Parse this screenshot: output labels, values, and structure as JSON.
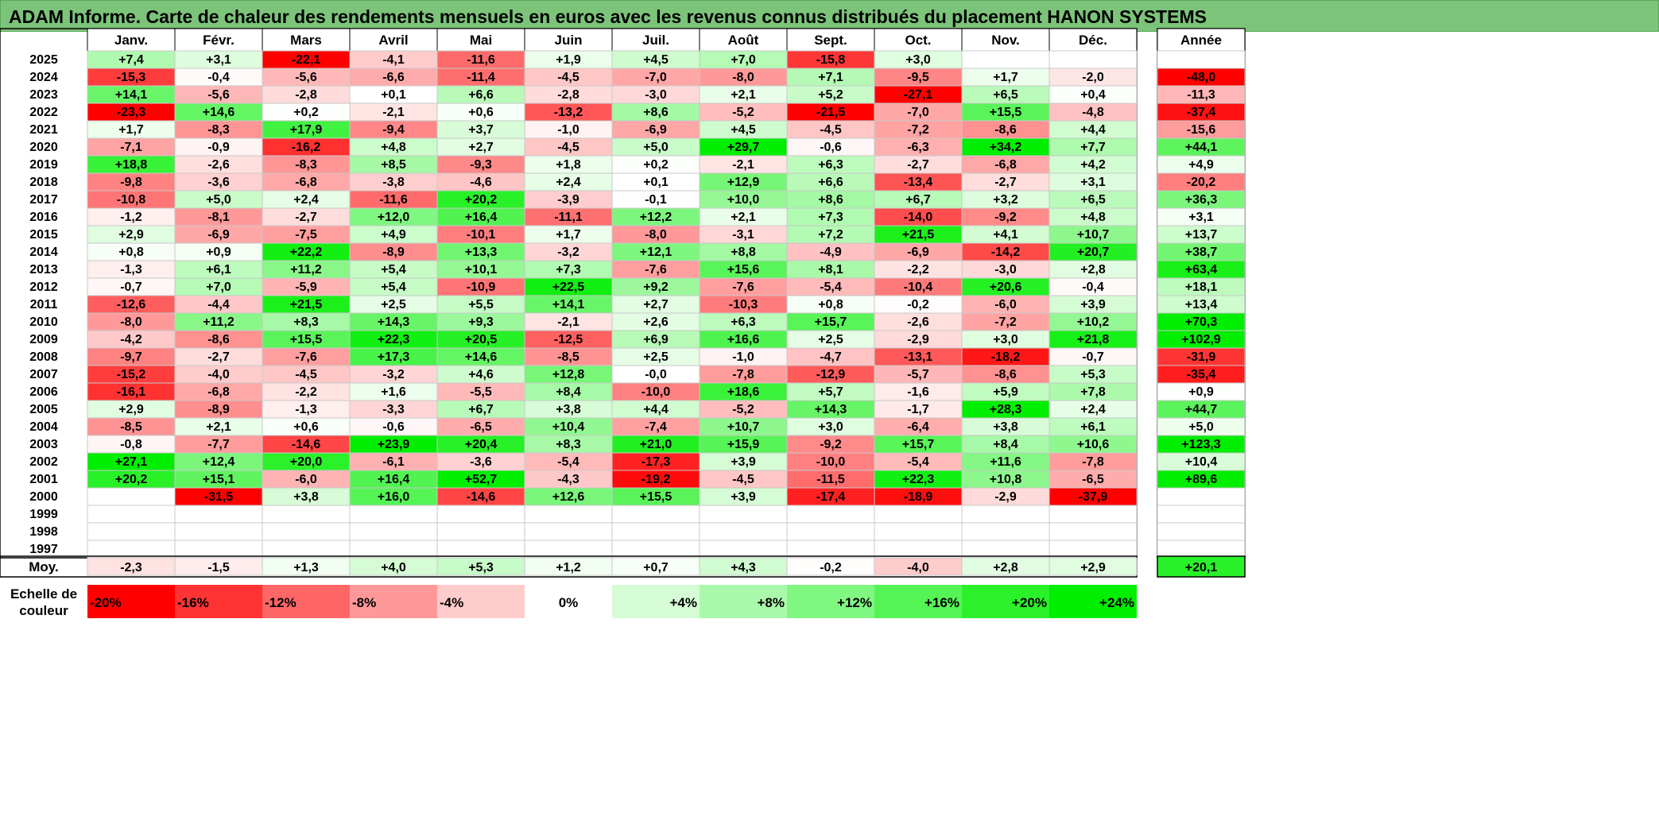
{
  "title": "ADAM Informe. Carte de chaleur des rendements mensuels en euros avec les revenus connus distribués du placement HANON SYSTEMS",
  "chart_data": {
    "type": "heatmap",
    "months": [
      "Janv.",
      "Févr.",
      "Mars",
      "Avril",
      "Mai",
      "Juin",
      "Juil.",
      "Août",
      "Sept.",
      "Oct.",
      "Nov.",
      "Déc."
    ],
    "annual_label": "Année",
    "years": [
      "2025",
      "2024",
      "2023",
      "2022",
      "2021",
      "2020",
      "2019",
      "2018",
      "2017",
      "2016",
      "2015",
      "2014",
      "2013",
      "2012",
      "2011",
      "2010",
      "2009",
      "2008",
      "2007",
      "2006",
      "2005",
      "2004",
      "2003",
      "2002",
      "2001",
      "2000",
      "1999",
      "1998",
      "1997"
    ],
    "values": [
      [
        "+7,4",
        "+3,1",
        "-22,1",
        "-4,1",
        "-11,6",
        "+1,9",
        "+4,5",
        "+7,0",
        "-15,8",
        "+3,0",
        "",
        ""
      ],
      [
        "-15,3",
        "-0,4",
        "-5,6",
        "-6,6",
        "-11,4",
        "-4,5",
        "-7,0",
        "-8,0",
        "+7,1",
        "-9,5",
        "+1,7",
        "-2,0"
      ],
      [
        "+14,1",
        "-5,6",
        "-2,8",
        "+0,1",
        "+6,6",
        "-2,8",
        "-3,0",
        "+2,1",
        "+5,2",
        "-27,1",
        "+6,5",
        "+0,4"
      ],
      [
        "-23,3",
        "+14,6",
        "+0,2",
        "-2,1",
        "+0,6",
        "-13,2",
        "+8,6",
        "-5,2",
        "-21,5",
        "-7,0",
        "+15,5",
        "-4,8"
      ],
      [
        "+1,7",
        "-8,3",
        "+17,9",
        "-9,4",
        "+3,7",
        "-1,0",
        "-6,9",
        "+4,5",
        "-4,5",
        "-7,2",
        "-8,6",
        "+4,4"
      ],
      [
        "-7,1",
        "-0,9",
        "-16,2",
        "+4,8",
        "+2,7",
        "-4,5",
        "+5,0",
        "+29,7",
        "-0,6",
        "-6,3",
        "+34,2",
        "+7,7"
      ],
      [
        "+18,8",
        "-2,6",
        "-8,3",
        "+8,5",
        "-9,3",
        "+1,8",
        "+0,2",
        "-2,1",
        "+6,3",
        "-2,7",
        "-6,8",
        "+4,2"
      ],
      [
        "-9,8",
        "-3,6",
        "-6,8",
        "-3,8",
        "-4,6",
        "+2,4",
        "+0,1",
        "+12,9",
        "+6,6",
        "-13,4",
        "-2,7",
        "+3,1"
      ],
      [
        "-10,8",
        "+5,0",
        "+2,4",
        "-11,6",
        "+20,2",
        "-3,9",
        "-0,1",
        "+10,0",
        "+8,6",
        "+6,7",
        "+3,2",
        "+6,5"
      ],
      [
        "-1,2",
        "-8,1",
        "-2,7",
        "+12,0",
        "+16,4",
        "-11,1",
        "+12,2",
        "+2,1",
        "+7,3",
        "-14,0",
        "-9,2",
        "+4,8"
      ],
      [
        "+2,9",
        "-6,9",
        "-7,5",
        "+4,9",
        "-10,1",
        "+1,7",
        "-8,0",
        "-3,1",
        "+7,2",
        "+21,5",
        "+4,1",
        "+10,7"
      ],
      [
        "+0,8",
        "+0,9",
        "+22,2",
        "-8,9",
        "+13,3",
        "-3,2",
        "+12,1",
        "+8,8",
        "-4,9",
        "-6,9",
        "-14,2",
        "+20,7"
      ],
      [
        "-1,3",
        "+6,1",
        "+11,2",
        "+5,4",
        "+10,1",
        "+7,3",
        "-7,6",
        "+15,6",
        "+8,1",
        "-2,2",
        "-3,0",
        "+2,8"
      ],
      [
        "-0,7",
        "+7,0",
        "-5,9",
        "+5,4",
        "-10,9",
        "+22,5",
        "+9,2",
        "-7,6",
        "-5,4",
        "-10,4",
        "+20,6",
        "-0,4"
      ],
      [
        "-12,6",
        "-4,4",
        "+21,5",
        "+2,5",
        "+5,5",
        "+14,1",
        "+2,7",
        "-10,3",
        "+0,8",
        "-0,2",
        "-6,0",
        "+3,9"
      ],
      [
        "-8,0",
        "+11,2",
        "+8,3",
        "+14,3",
        "+9,3",
        "-2,1",
        "+2,6",
        "+6,3",
        "+15,7",
        "-2,6",
        "-7,2",
        "+10,2"
      ],
      [
        "-4,2",
        "-8,6",
        "+15,5",
        "+22,3",
        "+20,5",
        "-12,5",
        "+6,9",
        "+16,6",
        "+2,5",
        "-2,9",
        "+3,0",
        "+21,8"
      ],
      [
        "-9,7",
        "-2,7",
        "-7,6",
        "+17,3",
        "+14,6",
        "-8,5",
        "+2,5",
        "-1,0",
        "-4,7",
        "-13,1",
        "-18,2",
        "-0,7"
      ],
      [
        "-15,2",
        "-4,0",
        "-4,5",
        "-3,2",
        "+4,6",
        "+12,8",
        "-0,0",
        "-7,8",
        "-12,9",
        "-5,7",
        "-8,6",
        "+5,3"
      ],
      [
        "-16,1",
        "-6,8",
        "-2,2",
        "+1,6",
        "-5,5",
        "+8,4",
        "-10,0",
        "+18,6",
        "+5,7",
        "-1,6",
        "+5,9",
        "+7,8"
      ],
      [
        "+2,9",
        "-8,9",
        "-1,3",
        "-3,3",
        "+6,7",
        "+3,8",
        "+4,4",
        "-5,2",
        "+14,3",
        "-1,7",
        "+28,3",
        "+2,4"
      ],
      [
        "-8,5",
        "+2,1",
        "+0,6",
        "-0,6",
        "-6,5",
        "+10,4",
        "-7,4",
        "+10,7",
        "+3,0",
        "-6,4",
        "+3,8",
        "+6,1"
      ],
      [
        "-0,8",
        "-7,7",
        "-14,6",
        "+23,9",
        "+20,4",
        "+8,3",
        "+21,0",
        "+15,9",
        "-9,2",
        "+15,7",
        "+8,4",
        "+10,6"
      ],
      [
        "+27,1",
        "+12,4",
        "+20,0",
        "-6,1",
        "-3,6",
        "-5,4",
        "-17,3",
        "+3,9",
        "-10,0",
        "-5,4",
        "+11,6",
        "-7,8"
      ],
      [
        "+20,2",
        "+15,1",
        "-6,0",
        "+16,4",
        "+52,7",
        "-4,3",
        "-19,2",
        "-4,5",
        "-11,5",
        "+22,3",
        "+10,8",
        "-6,5"
      ],
      [
        "",
        "-31,5",
        "+3,8",
        "+16,0",
        "-14,6",
        "+12,6",
        "+15,5",
        "+3,9",
        "-17,4",
        "-18,9",
        "-2,9",
        "-37,9"
      ],
      [
        "",
        "",
        "",
        "",
        "",
        "",
        "",
        "",
        "",
        "",
        "",
        ""
      ],
      [
        "",
        "",
        "",
        "",
        "",
        "",
        "",
        "",
        "",
        "",
        "",
        ""
      ],
      [
        "",
        "",
        "",
        "",
        "",
        "",
        "",
        "",
        "",
        "",
        "",
        ""
      ]
    ],
    "annual": [
      "",
      "-48,0",
      "-11,3",
      "-37,4",
      "-15,6",
      "+44,1",
      "+4,9",
      "-20,2",
      "+36,3",
      "+3,1",
      "+13,7",
      "+38,7",
      "+63,4",
      "+18,1",
      "+13,4",
      "+70,3",
      "+102,9",
      "-31,9",
      "-35,4",
      "+0,9",
      "+44,7",
      "+5,0",
      "+123,3",
      "+10,4",
      "+89,6",
      "",
      "",
      "",
      ""
    ],
    "average_label": "Moy.",
    "averages": [
      "-2,3",
      "-1,5",
      "+1,3",
      "+4,0",
      "+5,3",
      "+1,2",
      "+0,7",
      "+4,3",
      "-0,2",
      "-4,0",
      "+2,8",
      "+2,9"
    ],
    "average_annual": "+20,1",
    "scale_label": [
      "Echelle de",
      "couleur"
    ],
    "scale": [
      "-20%",
      "-16%",
      "-12%",
      "-8%",
      "-4%",
      "0%",
      "+4%",
      "+8%",
      "+12%",
      "+16%",
      "+20%",
      "+24%"
    ],
    "scale_values": [
      -20,
      -16,
      -12,
      -8,
      -4,
      0,
      4,
      8,
      12,
      16,
      20,
      24
    ],
    "colors": {
      "negative": "#ff0000",
      "positive": "#00ee00",
      "neutral": "#ffffff",
      "title_bg": "#7cc47a"
    }
  }
}
